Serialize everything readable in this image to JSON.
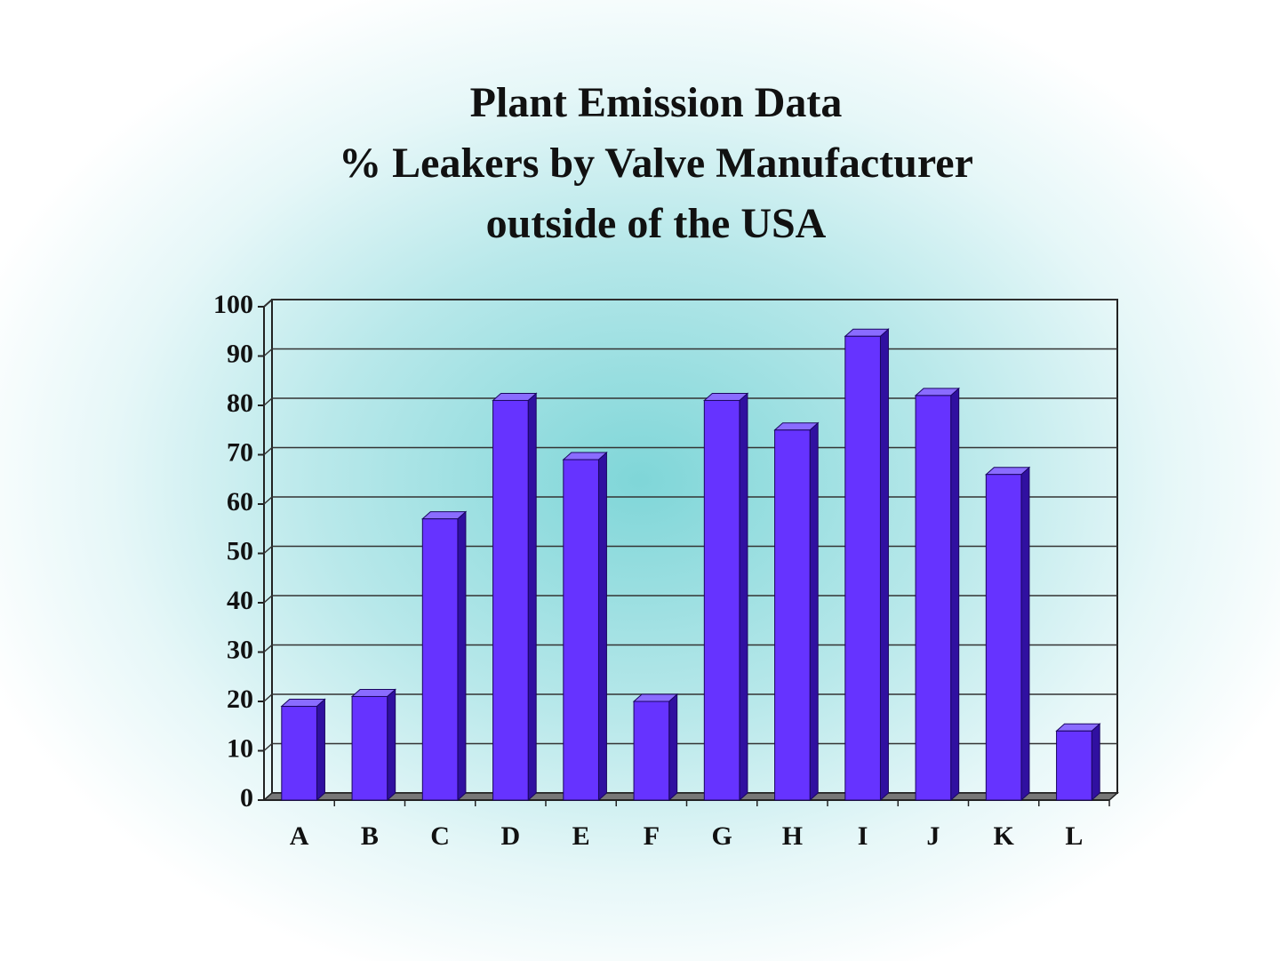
{
  "chart_data": {
    "type": "bar3d",
    "title": [
      "Plant Emission Data",
      "% Leakers by Valve Manufacturer",
      "outside of the USA"
    ],
    "categories": [
      "A",
      "B",
      "C",
      "D",
      "E",
      "F",
      "G",
      "H",
      "I",
      "J",
      "K",
      "L"
    ],
    "values": [
      19,
      21,
      57,
      81,
      69,
      20,
      81,
      75,
      94,
      82,
      66,
      14
    ],
    "color": "#6633ff",
    "ylim": [
      0,
      100
    ],
    "yticks": [
      0,
      10,
      20,
      30,
      40,
      50,
      60,
      70,
      80,
      90,
      100
    ],
    "grid": true
  }
}
